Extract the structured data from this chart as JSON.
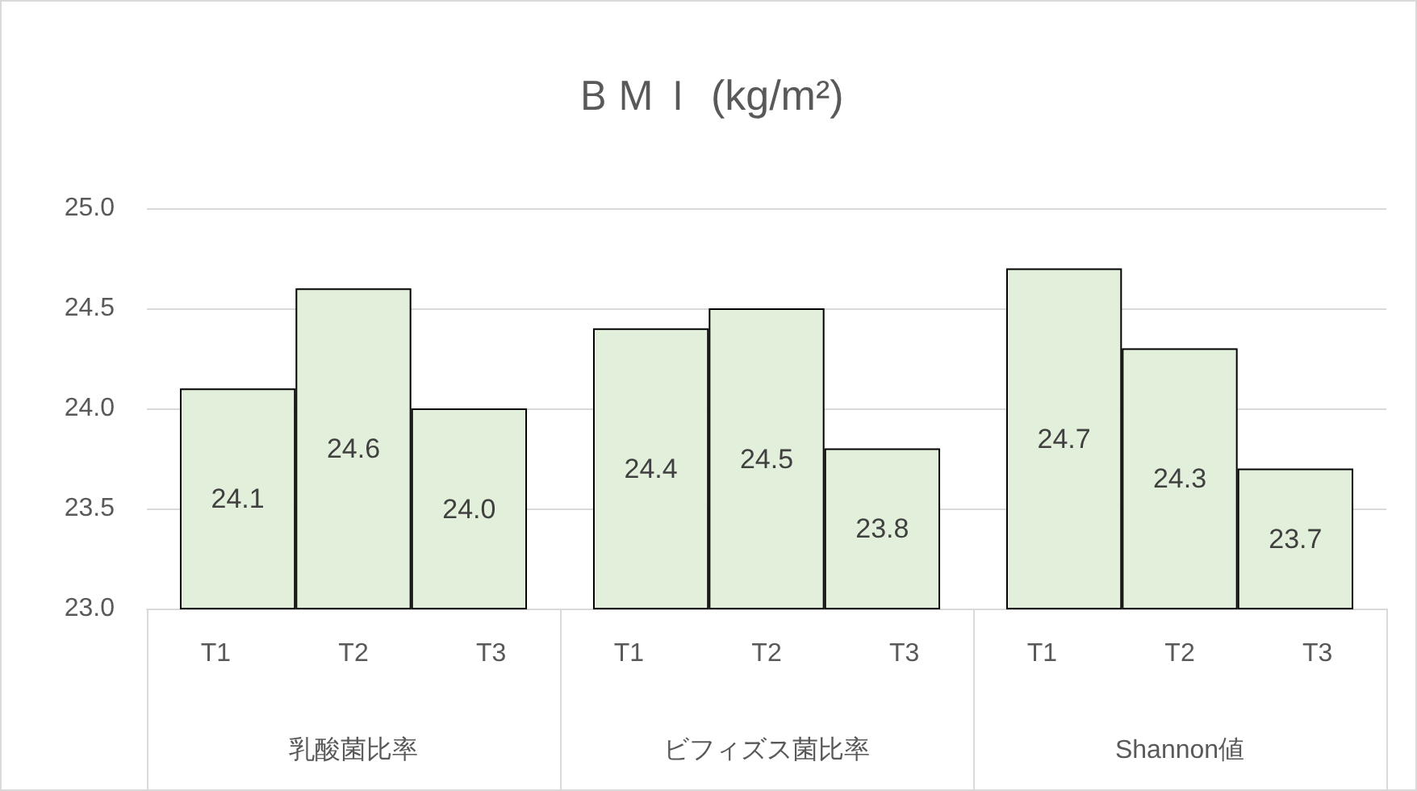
{
  "chart_data": {
    "type": "bar",
    "title": "ＢＭＩ (kg/m²)",
    "categories": [
      "T1",
      "T2",
      "T3",
      "T1",
      "T2",
      "T3",
      "T1",
      "T2",
      "T3"
    ],
    "annotations": [
      "乳酸菌比率",
      "ビフィズス菌比率",
      "Shannon値"
    ],
    "values": [
      24.1,
      24.6,
      24.0,
      24.4,
      24.5,
      23.8,
      24.7,
      24.3,
      23.7
    ],
    "color": "#e2efda",
    "value_labels": [
      "24.1",
      "24.6",
      "24.0",
      "24.4",
      "24.5",
      "23.8",
      "24.7",
      "24.3",
      "23.7"
    ],
    "ylim": [
      23,
      25
    ],
    "yticks": [
      {
        "value": 23,
        "label": "23.0"
      },
      {
        "value": 23.5,
        "label": "23.5"
      },
      {
        "value": 24,
        "label": "24.0"
      },
      {
        "value": 24.5,
        "label": "24.5"
      },
      {
        "value": 25,
        "label": "25.0"
      }
    ],
    "grid": "y"
  }
}
